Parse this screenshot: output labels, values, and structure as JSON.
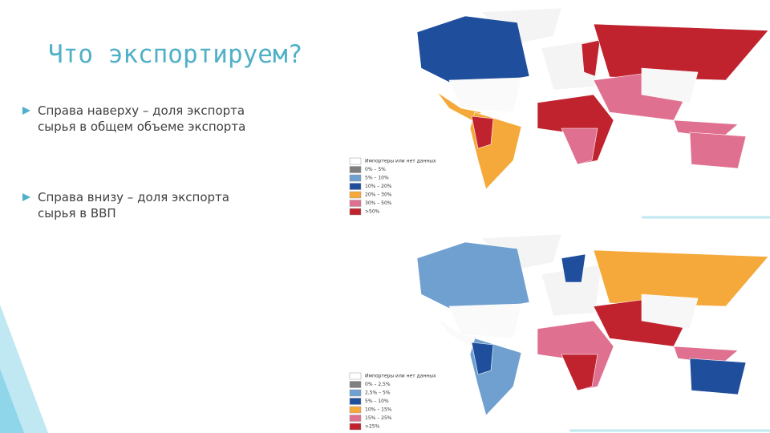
{
  "title": "Что экспортируем?",
  "bullets": [
    "Справа наверху – доля экспорта сырья в общем объеме экспорта",
    "Справа внизу – доля экспорта сырья в ВВП"
  ],
  "maps": [
    {
      "legend": [
        {
          "label": "Импортеры или нет данных",
          "color": "#ffffff"
        },
        {
          "label": "0% – 5%",
          "color": "#7f7f7f"
        },
        {
          "label": "5% – 10%",
          "color": "#6fa0d0"
        },
        {
          "label": "10% – 20%",
          "color": "#1f4e9c"
        },
        {
          "label": "20% – 30%",
          "color": "#f5a93a"
        },
        {
          "label": "30% – 50%",
          "color": "#e07090"
        },
        {
          "label": ">50%",
          "color": "#c0222e"
        }
      ]
    },
    {
      "legend": [
        {
          "label": "Импортеры или нет данных",
          "color": "#ffffff"
        },
        {
          "label": "0% – 2,5%",
          "color": "#7f7f7f"
        },
        {
          "label": "2,5% – 5%",
          "color": "#6fa0d0"
        },
        {
          "label": "5% – 10%",
          "color": "#1f4e9c"
        },
        {
          "label": "10% – 15%",
          "color": "#f5a93a"
        },
        {
          "label": "15% – 25%",
          "color": "#e07090"
        },
        {
          "label": ">25%",
          "color": "#c0222e"
        }
      ]
    }
  ]
}
